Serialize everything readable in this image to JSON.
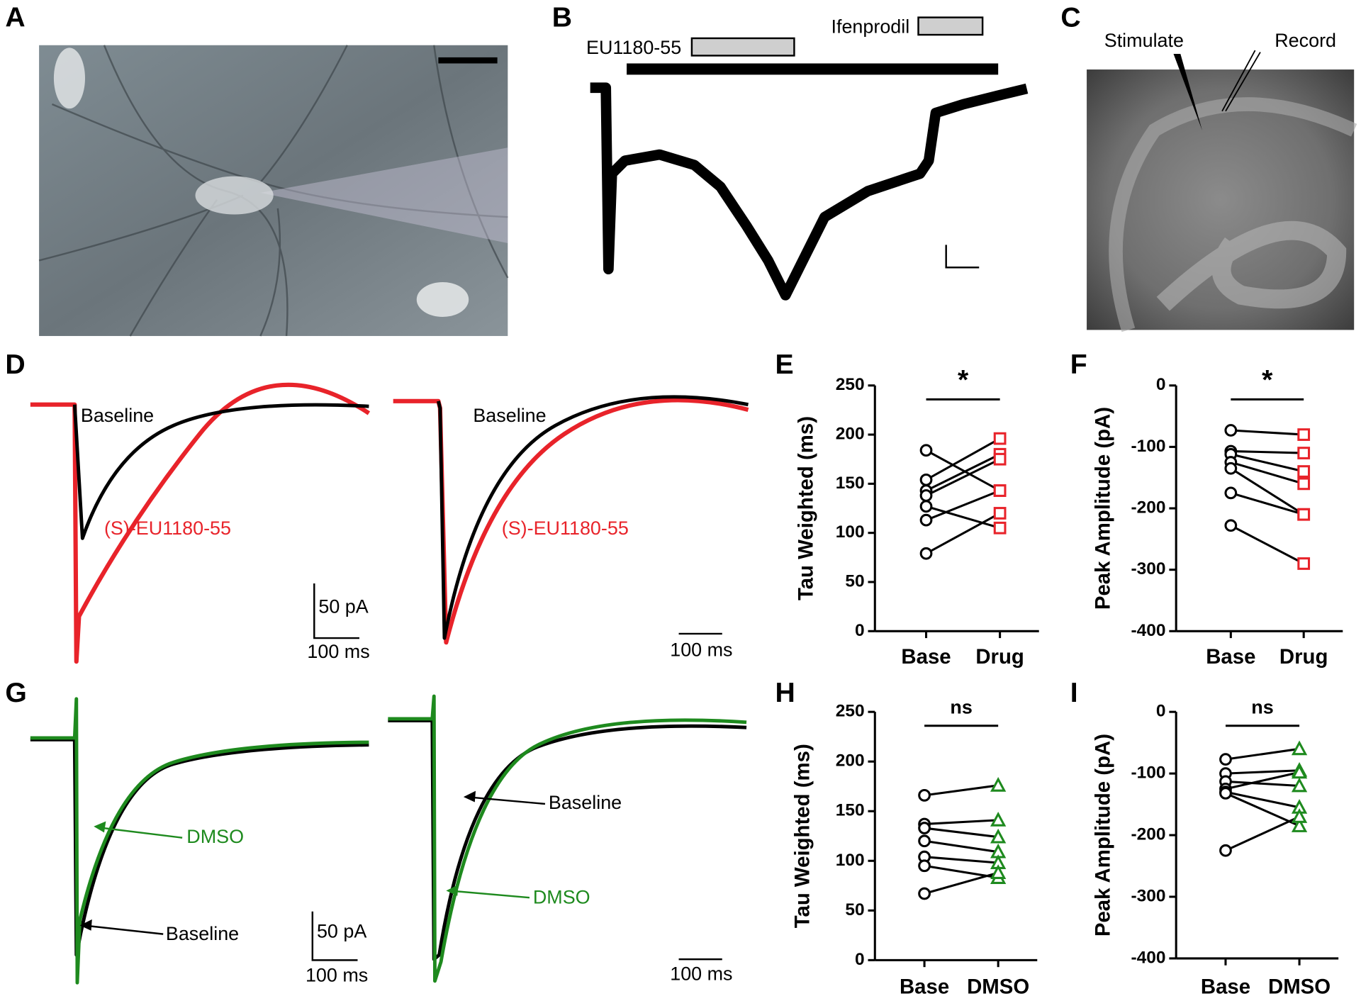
{
  "panel_labels": [
    "A",
    "B",
    "C",
    "D",
    "E",
    "F",
    "G",
    "H",
    "I"
  ],
  "panel_b": {
    "labels": [
      "EU1180-55",
      "Ifenprodil"
    ]
  },
  "panel_c": {
    "labels": [
      "Stimulate",
      "Record"
    ]
  },
  "panel_d": {
    "labels": [
      "Baseline",
      "(S)-EU1180-55",
      "Baseline",
      "(S)-EU1180-55"
    ],
    "scale_labels": [
      "50 pA",
      "100 ms",
      "100 ms"
    ]
  },
  "panel_g": {
    "labels": [
      "DMSO",
      "Baseline",
      "Baseline",
      "DMSO"
    ],
    "scale_labels": [
      "50 pA",
      "100 ms",
      "100 ms"
    ]
  },
  "chart_data": [
    {
      "type": "dot",
      "ylabel": "Tau Weighted (ms)",
      "annotation": "*",
      "categories": [
        "Base",
        "Drug"
      ],
      "colors": [
        "#000000",
        "#e8232a"
      ],
      "markers": [
        "circle",
        "square"
      ],
      "ylim": [
        0,
        250
      ],
      "yticks": [
        0,
        50,
        100,
        150,
        200,
        250
      ],
      "series": [
        {
          "values": [
            184,
            143
          ]
        },
        {
          "values": [
            154,
            196
          ]
        },
        {
          "values": [
            143,
            180
          ]
        },
        {
          "values": [
            138,
            175
          ]
        },
        {
          "values": [
            127,
            105
          ]
        },
        {
          "values": [
            113,
            143
          ]
        },
        {
          "values": [
            79,
            120
          ]
        }
      ]
    },
    {
      "type": "dot",
      "ylabel": "Peak  Amplitude (pA)",
      "annotation": "*",
      "categories": [
        "Base",
        "Drug"
      ],
      "colors": [
        "#000000",
        "#e8232a"
      ],
      "markers": [
        "circle",
        "square"
      ],
      "ylim": [
        -400,
        0
      ],
      "yticks": [
        0,
        -100,
        -200,
        -300,
        -400
      ],
      "series": [
        {
          "values": [
            -73,
            -80
          ]
        },
        {
          "values": [
            -107,
            -110
          ]
        },
        {
          "values": [
            -112,
            -140
          ]
        },
        {
          "values": [
            -125,
            -160
          ]
        },
        {
          "values": [
            -135,
            -210
          ]
        },
        {
          "values": [
            -175,
            -210
          ]
        },
        {
          "values": [
            -228,
            -290
          ]
        }
      ]
    },
    {
      "type": "dot",
      "ylabel": "Tau Weighted (ms)",
      "annotation": "ns",
      "categories": [
        "Base",
        "DMSO"
      ],
      "colors": [
        "#000000",
        "#1e8a1e"
      ],
      "markers": [
        "circle",
        "triangle"
      ],
      "ylim": [
        0,
        250
      ],
      "yticks": [
        0,
        50,
        100,
        150,
        200,
        250
      ],
      "series": [
        {
          "values": [
            166,
            176
          ]
        },
        {
          "values": [
            137,
            141
          ]
        },
        {
          "values": [
            133,
            124
          ]
        },
        {
          "values": [
            120,
            109
          ]
        },
        {
          "values": [
            104,
            98
          ]
        },
        {
          "values": [
            95,
            83
          ]
        },
        {
          "values": [
            67,
            88
          ]
        }
      ]
    },
    {
      "type": "dot",
      "ylabel": "Peak  Amplitude (pA)",
      "annotation": "ns",
      "categories": [
        "Base",
        "DMSO"
      ],
      "colors": [
        "#000000",
        "#1e8a1e"
      ],
      "markers": [
        "circle",
        "triangle"
      ],
      "ylim": [
        -400,
        0
      ],
      "yticks": [
        0,
        -100,
        -200,
        -300,
        -400
      ],
      "series": [
        {
          "values": [
            -77,
            -60
          ]
        },
        {
          "values": [
            -100,
            -95
          ]
        },
        {
          "values": [
            -113,
            -120
          ]
        },
        {
          "values": [
            -125,
            -98
          ]
        },
        {
          "values": [
            -130,
            -155
          ]
        },
        {
          "values": [
            -132,
            -185
          ]
        },
        {
          "values": [
            -225,
            -170
          ]
        }
      ]
    }
  ]
}
